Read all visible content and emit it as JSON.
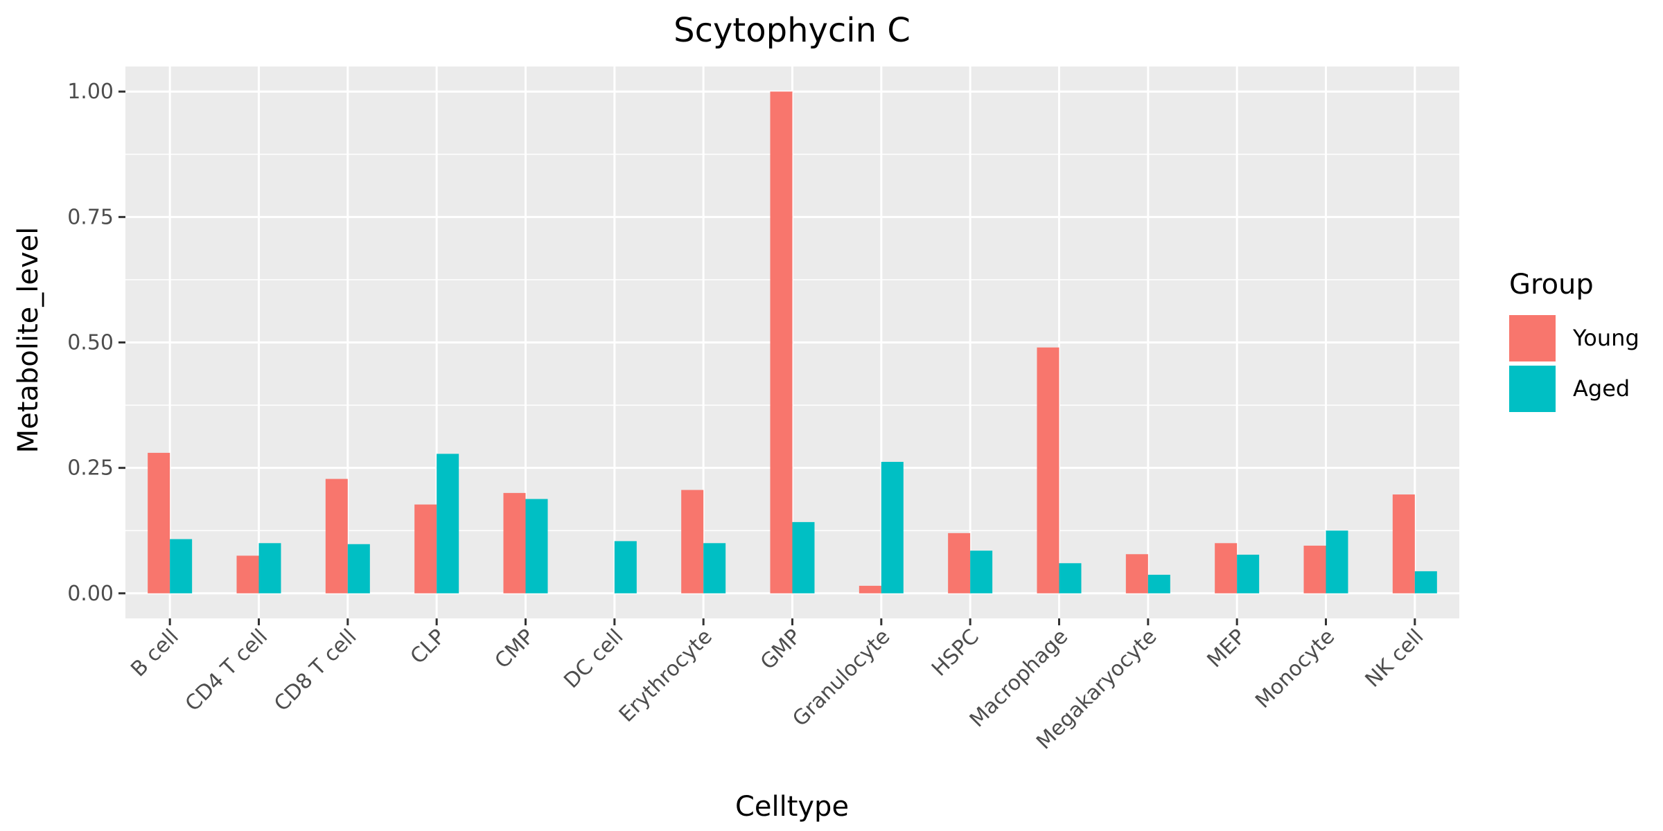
{
  "chart_data": {
    "type": "bar",
    "title": "Scytophycin C",
    "xlabel": "Celltype",
    "ylabel": "Metabolite_level",
    "categories": [
      "B cell",
      "CD4 T cell",
      "CD8 T cell",
      "CLP",
      "CMP",
      "DC cell",
      "Erythrocyte",
      "GMP",
      "Granulocyte",
      "HSPC",
      "Macrophage",
      "Megakaryocyte",
      "MEP",
      "Monocyte",
      "NK cell"
    ],
    "series": [
      {
        "name": "Young",
        "color": "#F8766D",
        "values": [
          0.28,
          0.075,
          0.228,
          0.177,
          0.2,
          0.0,
          0.206,
          1.0,
          0.015,
          0.12,
          0.49,
          0.078,
          0.1,
          0.095,
          0.197
        ]
      },
      {
        "name": "Aged",
        "color": "#00BFC4",
        "values": [
          0.108,
          0.1,
          0.098,
          0.278,
          0.188,
          0.104,
          0.1,
          0.142,
          0.262,
          0.085,
          0.06,
          0.037,
          0.077,
          0.125,
          0.044
        ]
      }
    ],
    "ylim": [
      -0.05,
      1.05
    ],
    "yticks": [
      0.0,
      0.25,
      0.5,
      0.75,
      1.0
    ],
    "ytick_labels": [
      "0.00",
      "0.25",
      "0.50",
      "0.75",
      "1.00"
    ],
    "grid": true,
    "panel_background": "#EBEBEB",
    "legend": {
      "title": "Group",
      "placement": "right"
    }
  }
}
